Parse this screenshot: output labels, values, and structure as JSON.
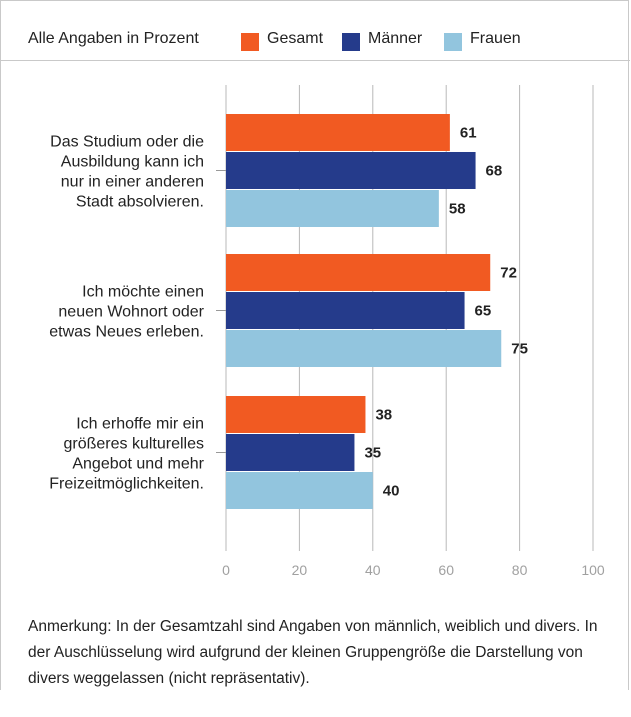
{
  "chart_data": {
    "type": "bar",
    "orientation": "horizontal",
    "subtitle": "Alle Angaben in Prozent",
    "categories": [
      "Das Studium oder die Ausbildung kann ich nur in einer anderen Stadt absolvieren.",
      "Ich möchte einen neuen Wohnort oder etwas Neues erleben.",
      "Ich erhoffe mir ein größeres kulturelles Angebot und mehr Freizeitmöglichkeiten."
    ],
    "category_lines": [
      [
        "Das Studium oder die",
        "Ausbildung kann ich",
        "nur in einer anderen",
        "Stadt absolvieren."
      ],
      [
        "Ich möchte einen",
        "neuen Wohnort oder",
        "etwas Neues erleben."
      ],
      [
        "Ich erhoffe mir ein",
        "größeres kulturelles",
        "Angebot und mehr",
        "Freizeitmöglichkeiten."
      ]
    ],
    "series": [
      {
        "name": "Gesamt",
        "color": "#f15a22",
        "values": [
          61,
          72,
          38
        ]
      },
      {
        "name": "Männer",
        "color": "#253b8b",
        "values": [
          68,
          65,
          35
        ]
      },
      {
        "name": "Frauen",
        "color": "#92c5de",
        "values": [
          58,
          75,
          40
        ]
      }
    ],
    "xlim": [
      0,
      100
    ],
    "xticks": [
      0,
      20,
      40,
      60,
      80,
      100
    ],
    "grid": true,
    "legend_position": "top"
  },
  "note": "Anmerkung: In der Gesamtzahl sind Angaben von männlich, weiblich und divers. In der Auschlüsselung wird aufgrund der kleinen Gruppengröße die Darstellung von divers weggelassen (nicht repräsentativ)."
}
